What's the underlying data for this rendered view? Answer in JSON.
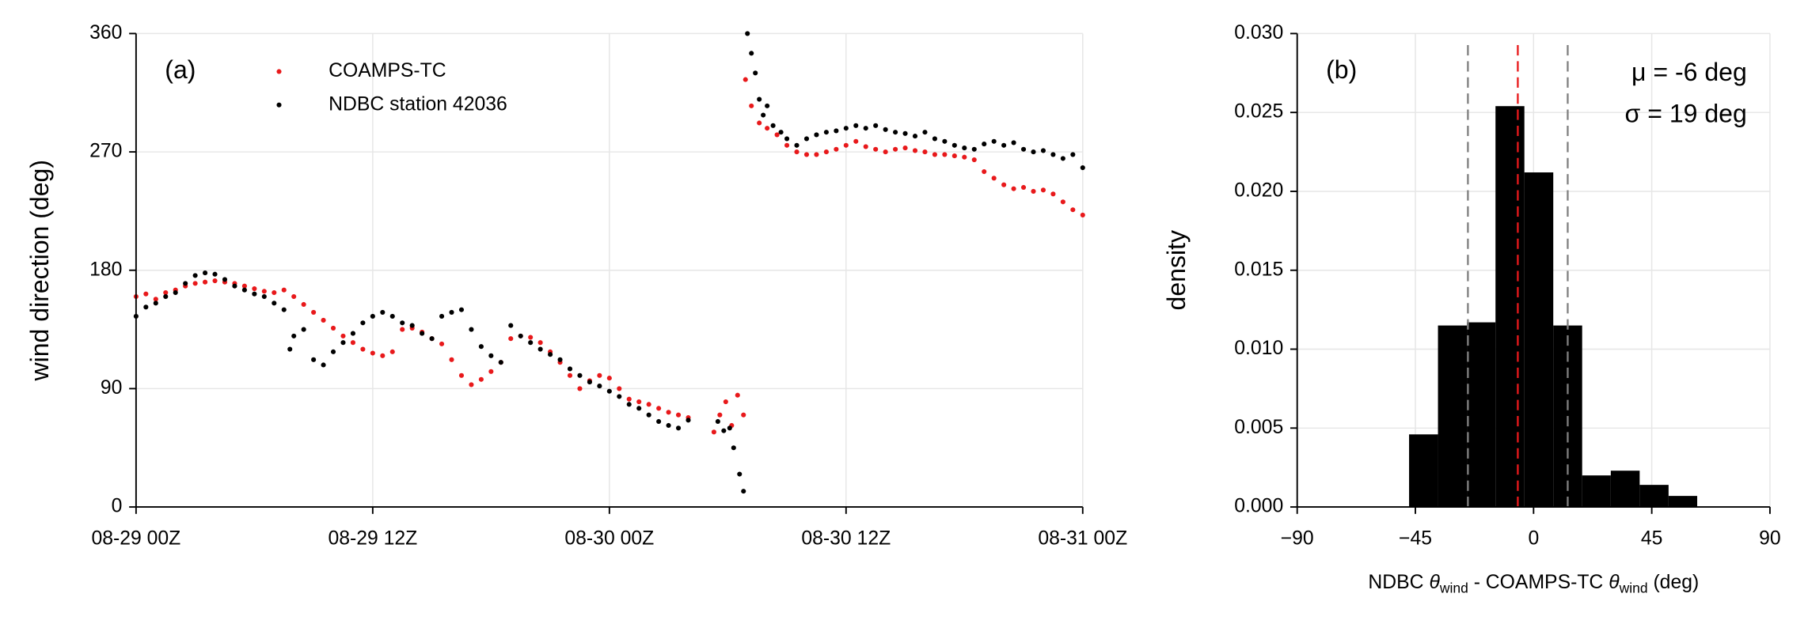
{
  "chart_data": [
    {
      "type": "scatter",
      "panel_label": "(a)",
      "ylabel": "wind direction (deg)",
      "xlim": [
        0,
        48
      ],
      "xticks": [
        {
          "value": 0,
          "label": "08-29 00Z"
        },
        {
          "value": 12,
          "label": "08-29 12Z"
        },
        {
          "value": 24,
          "label": "08-30 00Z"
        },
        {
          "value": 36,
          "label": "08-30 12Z"
        },
        {
          "value": 48,
          "label": "08-31 00Z"
        }
      ],
      "ylim": [
        0,
        360
      ],
      "yticks": [
        0,
        90,
        180,
        270,
        360
      ],
      "grid": true,
      "legend": "upper left",
      "series": [
        {
          "name": "COAMPS-TC",
          "color": "#e8191b",
          "x": [
            0,
            0.5,
            1,
            1.5,
            2,
            2.5,
            3,
            3.5,
            4,
            4.5,
            5,
            5.5,
            6,
            6.5,
            7,
            7.5,
            8,
            8.5,
            9,
            9.5,
            10,
            10.5,
            11,
            11.5,
            12,
            12.5,
            13,
            13.5,
            14,
            14.5,
            15,
            15.5,
            16,
            16.5,
            17,
            17.5,
            18,
            18.5,
            19,
            19.5,
            20,
            20.5,
            21,
            21.5,
            22,
            22.5,
            23,
            23.5,
            24,
            24.5,
            25,
            25.5,
            26,
            26.5,
            27,
            27.5,
            28,
            29.3,
            29.6,
            29.9,
            30.2,
            30.5,
            30.8,
            30.9,
            31.2,
            31.6,
            32,
            32.5,
            33,
            33.5,
            34,
            34.5,
            35,
            35.5,
            36,
            36.5,
            37,
            37.5,
            38,
            38.5,
            39,
            39.5,
            40,
            40.5,
            41,
            41.5,
            42,
            42.5,
            43,
            43.5,
            44,
            44.5,
            45,
            45.5,
            46,
            46.5,
            47,
            47.5,
            48
          ],
          "values": [
            160,
            162,
            158,
            163,
            165,
            168,
            170,
            171,
            172,
            171,
            170,
            168,
            166,
            164,
            163,
            165,
            160,
            154,
            148,
            142,
            136,
            130,
            125,
            120,
            117,
            115,
            118,
            135,
            136,
            133,
            128,
            124,
            112,
            100,
            93,
            97,
            103,
            110,
            128,
            130,
            129,
            125,
            118,
            110,
            100,
            90,
            96,
            100,
            98,
            90,
            82,
            80,
            78,
            75,
            72,
            70,
            68,
            57,
            70,
            80,
            62,
            85,
            70,
            325,
            305,
            292,
            288,
            283,
            275,
            270,
            268,
            268,
            270,
            272,
            275,
            278,
            274,
            272,
            270,
            272,
            273,
            271,
            270,
            268,
            268,
            267,
            266,
            264,
            255,
            250,
            245,
            242,
            243,
            240,
            241,
            238,
            232,
            226,
            222
          ]
        },
        {
          "name": "NDBC station 42036",
          "color": "#000000",
          "x": [
            0,
            0.5,
            1,
            1.5,
            2,
            2.5,
            3,
            3.5,
            4,
            4.5,
            5,
            5.5,
            6,
            6.5,
            7,
            7.5,
            7.8,
            8,
            8.5,
            9,
            9.5,
            10,
            10.5,
            11,
            11.5,
            12,
            12.5,
            13,
            13.5,
            14,
            14.5,
            15,
            15.5,
            16,
            16.5,
            17,
            17.5,
            18,
            18.5,
            19,
            19.5,
            20,
            20.5,
            21,
            21.5,
            22,
            22.5,
            23,
            23.5,
            24,
            24.5,
            25,
            25.5,
            26,
            26.5,
            27,
            27.5,
            28,
            29.5,
            29.8,
            30.1,
            30.3,
            30.6,
            30.8,
            31,
            31.2,
            31.4,
            31.6,
            31.8,
            32,
            32.3,
            32.7,
            33,
            33.5,
            34,
            34.5,
            35,
            35.5,
            36,
            36.5,
            37,
            37.5,
            38,
            38.5,
            39,
            39.5,
            40,
            40.5,
            41,
            41.5,
            42,
            42.5,
            43,
            43.5,
            44,
            44.5,
            45,
            45.5,
            46,
            46.5,
            47,
            47.5,
            48
          ],
          "values": [
            145,
            152,
            155,
            160,
            163,
            170,
            176,
            178,
            177,
            173,
            168,
            165,
            162,
            160,
            155,
            150,
            120,
            130,
            135,
            112,
            108,
            118,
            125,
            132,
            140,
            145,
            148,
            145,
            140,
            138,
            132,
            128,
            145,
            148,
            150,
            135,
            122,
            115,
            110,
            138,
            130,
            125,
            120,
            116,
            112,
            105,
            100,
            95,
            92,
            88,
            84,
            78,
            75,
            70,
            65,
            62,
            60,
            66,
            65,
            58,
            60,
            45,
            25,
            12,
            360,
            345,
            330,
            310,
            298,
            305,
            290,
            285,
            280,
            275,
            280,
            283,
            285,
            286,
            288,
            290,
            288,
            290,
            287,
            285,
            284,
            282,
            285,
            280,
            278,
            275,
            273,
            272,
            276,
            278,
            275,
            277,
            272,
            270,
            271,
            268,
            265,
            268,
            258
          ]
        }
      ]
    },
    {
      "type": "histogram",
      "panel_label": "(b)",
      "ylabel": "density",
      "xlabel": [
        "NDBC ",
        "θ",
        "wind",
        " - COAMPS-TC ",
        "θ",
        "wind",
        " (deg)"
      ],
      "annotations": [
        "μ = -6 deg",
        "σ = 19 deg"
      ],
      "xlim": [
        -90,
        90
      ],
      "xticks": [
        {
          "value": -90,
          "label": "−90"
        },
        {
          "value": -45,
          "label": "−45"
        },
        0,
        45,
        90
      ],
      "ylim": [
        0,
        0.03
      ],
      "yticks": [
        {
          "value": 0,
          "label": "0.000"
        },
        {
          "value": 0.005,
          "label": "0.005"
        },
        {
          "value": 0.01,
          "label": "0.010"
        },
        {
          "value": 0.015,
          "label": "0.015"
        },
        {
          "value": 0.02,
          "label": "0.020"
        },
        {
          "value": 0.025,
          "label": "0.025"
        },
        {
          "value": 0.03,
          "label": "0.030"
        }
      ],
      "grid": true,
      "color": "#000000",
      "bins": [
        -47.4,
        -36.4,
        -25.4,
        -14.5,
        -3.5,
        7.5,
        18.5,
        29.4,
        40.4,
        51.4,
        62.3
      ],
      "values": [
        0.0046,
        0.0115,
        0.0117,
        0.0254,
        0.0212,
        0.0115,
        0.002,
        0.0023,
        0.0014,
        0.0007
      ],
      "vlines": [
        {
          "x": -6,
          "color": "#e8191b"
        },
        {
          "x": -25,
          "color": "#808080"
        },
        {
          "x": 13,
          "color": "#808080"
        }
      ]
    }
  ]
}
